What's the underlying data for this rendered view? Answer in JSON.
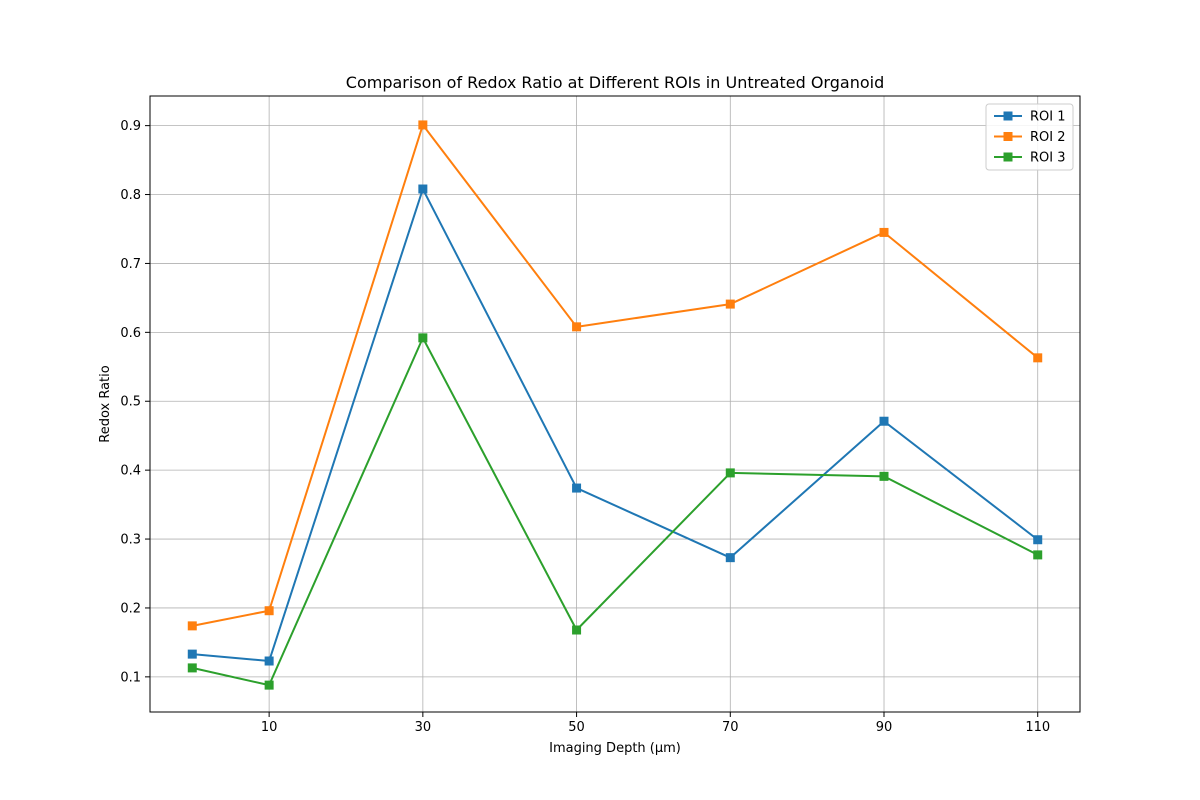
{
  "chart_data": {
    "type": "line",
    "title": "Comparison of Redox Ratio at Different ROIs in Untreated Organoid",
    "xlabel": "Imaging Depth (µm)",
    "ylabel": "Redox Ratio",
    "x": [
      0,
      10,
      30,
      50,
      70,
      90,
      110
    ],
    "xticks": [
      10,
      30,
      50,
      70,
      90,
      110
    ],
    "yticks": [
      0.1,
      0.2,
      0.3,
      0.4,
      0.5,
      0.6,
      0.7,
      0.8,
      0.9
    ],
    "xlim": [
      -5.5,
      115.5
    ],
    "ylim": [
      0.049,
      0.943
    ],
    "grid": true,
    "legend_position": "top-right",
    "marker": "square",
    "series": [
      {
        "name": "ROI 1",
        "color": "#1f77b4",
        "values": [
          0.133,
          0.123,
          0.808,
          0.374,
          0.273,
          0.471,
          0.299
        ]
      },
      {
        "name": "ROI 2",
        "color": "#ff7f0e",
        "values": [
          0.174,
          0.196,
          0.901,
          0.608,
          0.641,
          0.745,
          0.563
        ]
      },
      {
        "name": "ROI 3",
        "color": "#2ca02c",
        "values": [
          0.113,
          0.088,
          0.592,
          0.168,
          0.396,
          0.391,
          0.277
        ]
      }
    ]
  }
}
